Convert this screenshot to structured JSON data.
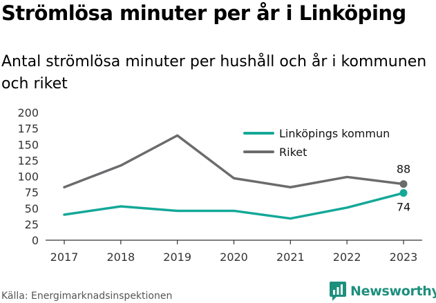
{
  "title": "Strömlösa minuter per år i Linköping",
  "subtitle": "Antal strömlösa minuter per hushåll och år i kommunen och riket",
  "source": "Källa: Energimarknadsinspektionen",
  "brand": "Newsworthy",
  "colors": {
    "kommun": "#14a898",
    "riket": "#6b6b6e",
    "axis": "#333333",
    "brand": "#1d8f7d"
  },
  "chart_data": {
    "type": "line",
    "title": "Strömlösa minuter per år i Linköping",
    "xlabel": "",
    "ylabel": "",
    "categories": [
      "2017",
      "2018",
      "2019",
      "2020",
      "2021",
      "2022",
      "2023"
    ],
    "y_ticks": [
      "0",
      "25",
      "50",
      "75",
      "100",
      "125",
      "150",
      "175",
      "200"
    ],
    "ylim": [
      0,
      200
    ],
    "grid": false,
    "legend": "top-right",
    "series": [
      {
        "name": "Linköpings kommun",
        "values": [
          40,
          53,
          46,
          46,
          34,
          51,
          74
        ],
        "end_label": "74",
        "color": "#14a898"
      },
      {
        "name": "Riket",
        "values": [
          83,
          117,
          164,
          97,
          83,
          99,
          88
        ],
        "end_label": "88",
        "color": "#6b6b6e"
      }
    ]
  }
}
